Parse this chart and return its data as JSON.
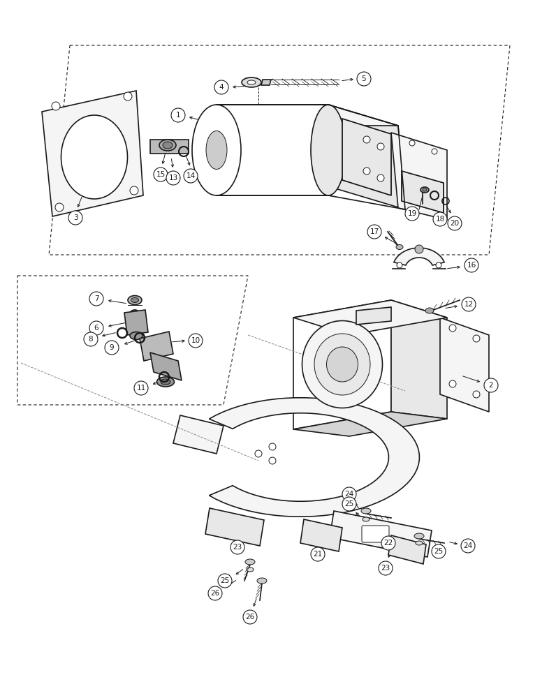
{
  "background_color": "#ffffff",
  "line_color": "#1a1a1a",
  "figsize": [
    7.96,
    10.0
  ],
  "dpi": 100,
  "fill_light": "#f5f5f5",
  "fill_mid": "#e8e8e8",
  "fill_dark": "#d5d5d5",
  "fill_white": "#ffffff",
  "lw_main": 1.2,
  "lw_thin": 0.7,
  "lw_dash": 0.8,
  "label_r": 10,
  "label_fontsize": 7.5
}
